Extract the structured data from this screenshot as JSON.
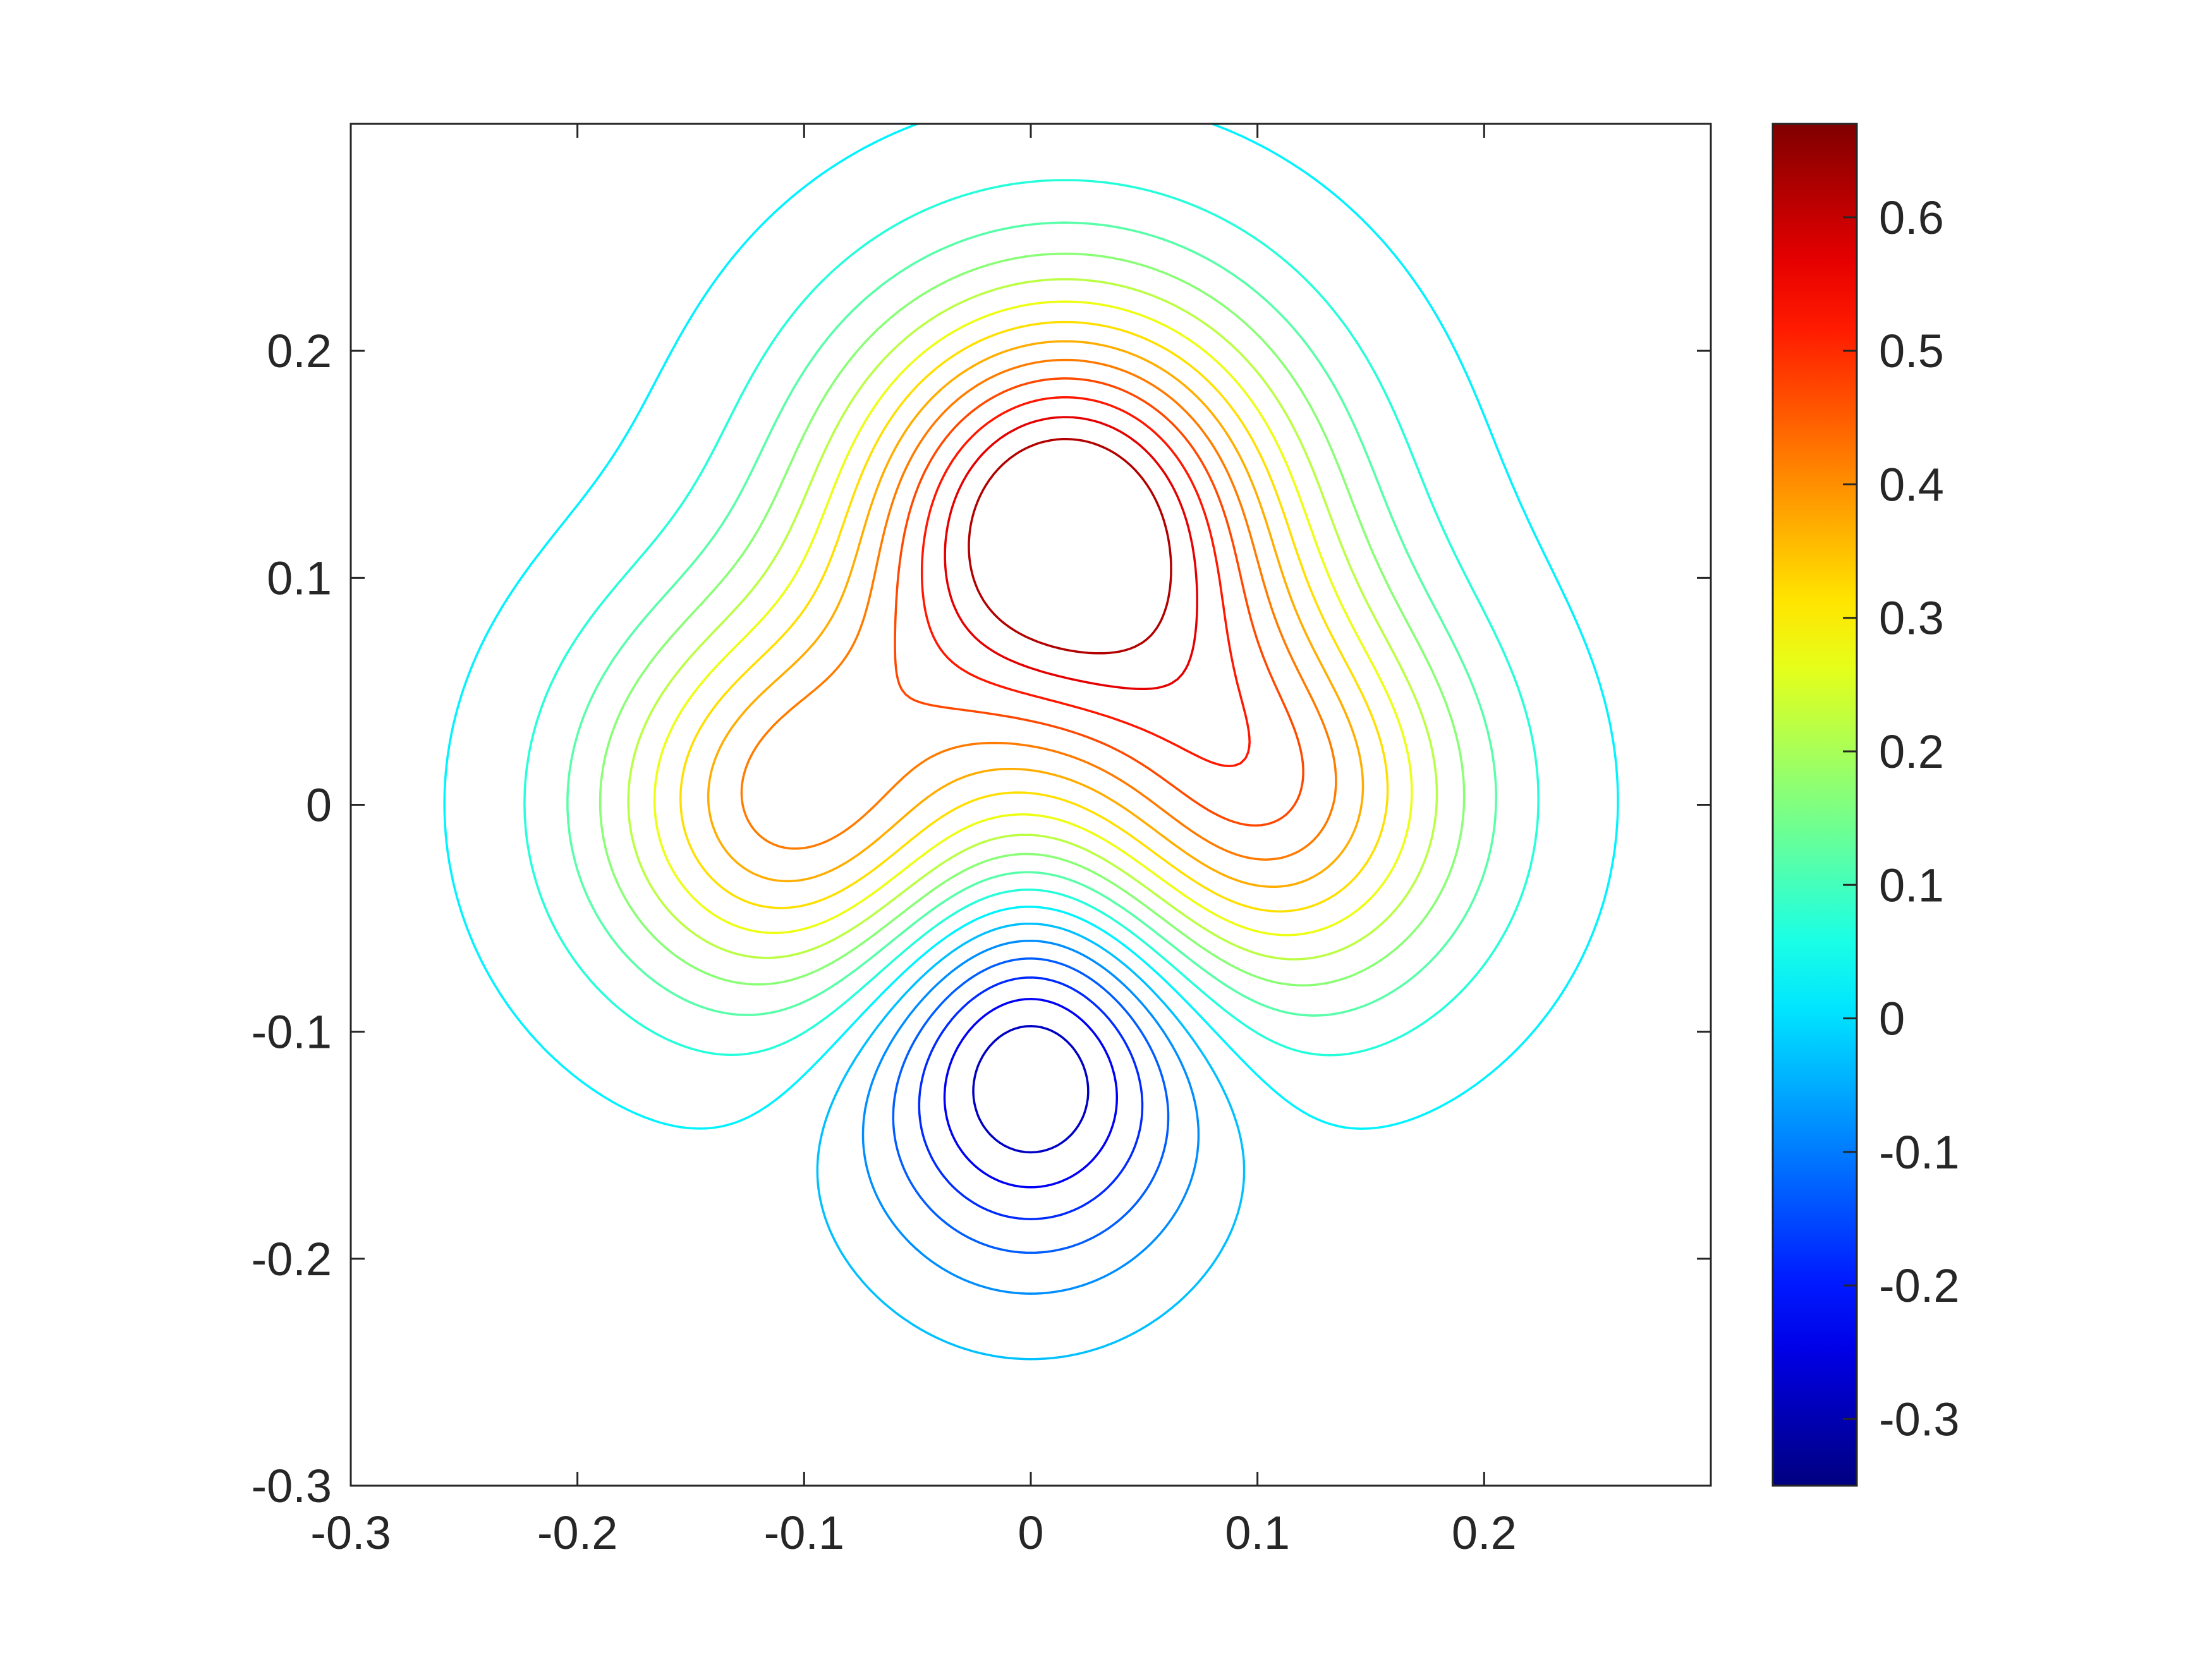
{
  "chart_data": {
    "type": "contour",
    "title": "",
    "xlabel": "",
    "ylabel": "",
    "xlim": [
      -0.3,
      0.3
    ],
    "ylim": [
      -0.3,
      0.3
    ],
    "xticks": [
      "-0.3",
      "-0.2",
      "-0.1",
      "0",
      "0.1",
      "0.2"
    ],
    "yticks": [
      "-0.3",
      "-0.2",
      "-0.1",
      "0",
      "0.1",
      "0.2"
    ],
    "xtick_values": [
      -0.3,
      -0.2,
      -0.1,
      0,
      0.1,
      0.2
    ],
    "ytick_values": [
      -0.3,
      -0.2,
      -0.1,
      0,
      0.1,
      0.2
    ],
    "grid": false,
    "colormap": "jet",
    "colorbar": {
      "position": "right",
      "limits": [
        -0.35,
        0.67
      ],
      "ticks": [
        "-0.3",
        "-0.2",
        "-0.1",
        "0",
        "0.1",
        "0.2",
        "0.3",
        "0.4",
        "0.5",
        "0.6"
      ],
      "tick_values": [
        -0.3,
        -0.2,
        -0.1,
        0,
        0.1,
        0.2,
        0.3,
        0.4,
        0.5,
        0.6
      ]
    },
    "field": {
      "components": [
        {
          "x": 0.015,
          "y": 0.125,
          "amplitude": 0.7,
          "sigma_x": 0.07,
          "sigma_y": 0.07
        },
        {
          "x": -0.105,
          "y": 0.0,
          "amplitude": 0.43,
          "sigma_x": 0.062,
          "sigma_y": 0.062
        },
        {
          "x": 0.105,
          "y": 0.0,
          "amplitude": 0.43,
          "sigma_x": 0.062,
          "sigma_y": 0.062
        },
        {
          "x": 0.0,
          "y": -0.115,
          "amplitude": -0.36,
          "sigma_x": 0.05,
          "sigma_y": 0.058
        }
      ]
    },
    "levels": [
      -0.33,
      -0.28,
      -0.23,
      -0.18,
      -0.13,
      -0.08,
      -0.03,
      0.02,
      0.07,
      0.12,
      0.17,
      0.22,
      0.27,
      0.32,
      0.37,
      0.42,
      0.47,
      0.52,
      0.57,
      0.62
    ]
  }
}
